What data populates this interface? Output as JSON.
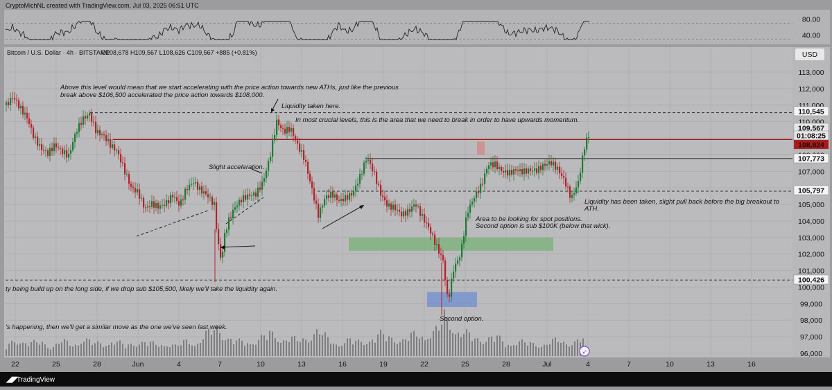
{
  "header": {
    "credit": "CryptoMichNL created with TradingView.com, Jul 03, 2025 06:51 UTC",
    "symbol": "Bitcoin / U.S. Dollar · 4h · BITSTAMP",
    "ohlc": "O108,678 H109,567 L108,626 C109,567 +885 (+0.81%)",
    "currency": "USD"
  },
  "footer": {
    "brand": "TradingView"
  },
  "chart_data": {
    "type": "candlestick",
    "title": "Bitcoin / U.S. Dollar · 4h · BITSTAMP",
    "ylim": [
      96000,
      114000
    ],
    "y_ticks": [
      "113,000",
      "112,000",
      "111,000",
      "110,000",
      "109,000",
      "108,000",
      "107,000",
      "106,000",
      "105,000",
      "104,000",
      "103,000",
      "102,000",
      "101,000",
      "100,000",
      "99,000",
      "98,000",
      "97,000",
      "96,000"
    ],
    "x_ticks": [
      "22",
      "25",
      "28",
      "Jun",
      "4",
      "7",
      "10",
      "13",
      "16",
      "19",
      "22",
      "25",
      "28",
      "Jul",
      "4",
      "7",
      "10",
      "13",
      "16"
    ],
    "rsi": {
      "ticks": [
        "80.00",
        "40.00"
      ],
      "ylim": [
        20,
        100
      ]
    },
    "price_labels": [
      {
        "value": "110,545",
        "style": "light"
      },
      {
        "value": "109,567",
        "style": "price"
      },
      {
        "value": "01:08:25",
        "style": "price-sub"
      },
      {
        "value": "108,924",
        "style": "red"
      },
      {
        "value": "107,773",
        "style": "light"
      },
      {
        "value": "105,797",
        "style": "light"
      },
      {
        "value": "100,426",
        "style": "light"
      }
    ],
    "levels": [
      {
        "price": 110545,
        "style": "dashed"
      },
      {
        "price": 108924,
        "style": "red"
      },
      {
        "price": 107773,
        "style": "solid"
      },
      {
        "price": 105797,
        "style": "dashed"
      },
      {
        "price": 100426,
        "style": "dashed"
      }
    ],
    "zones": [
      {
        "from": 102200,
        "to": 103000,
        "color": "#78b078"
      },
      {
        "from": 98800,
        "to": 99700,
        "color": "#6f8fd0"
      }
    ],
    "annotations": [
      "Above this level would mean that we start accelerating with the price action towards new ATHs, just like the previous break above $106,500 accelerated the price action towards $108,000.",
      "Liquidity taken here.",
      "In most crucial levels, this is the area that we need to break in order to have upwards momentum.",
      "Slight acceleration.",
      "Liquidity has been taken, slight pull back before the big breakout to ATH.",
      "Area to be looking for spot positions. Second option is sub $100K (below that wick).",
      "…ty being build up on the long side, if we drop sub $105,500, likely we'll take the liquidity again.",
      "Second option.",
      "…'s happening, then we'll get a similar move as the one we've seen last week."
    ],
    "close_path": [
      [
        0,
        111000
      ],
      [
        10,
        111500
      ],
      [
        20,
        110800
      ],
      [
        30,
        110200
      ],
      [
        40,
        109000
      ],
      [
        50,
        108300
      ],
      [
        60,
        108000
      ],
      [
        70,
        108500
      ],
      [
        80,
        108100
      ],
      [
        90,
        107800
      ],
      [
        100,
        109200
      ],
      [
        110,
        110000
      ],
      [
        120,
        110300
      ],
      [
        130,
        109200
      ],
      [
        140,
        109000
      ],
      [
        150,
        108400
      ],
      [
        160,
        108000
      ],
      [
        170,
        106900
      ],
      [
        180,
        105800
      ],
      [
        190,
        105500
      ],
      [
        200,
        104500
      ],
      [
        210,
        104800
      ],
      [
        220,
        104600
      ],
      [
        230,
        104800
      ],
      [
        240,
        105300
      ],
      [
        250,
        104700
      ],
      [
        260,
        105700
      ],
      [
        270,
        106100
      ],
      [
        280,
        105600
      ],
      [
        290,
        105300
      ],
      [
        300,
        104700
      ],
      [
        305,
        102500
      ],
      [
        310,
        101300
      ],
      [
        315,
        102900
      ],
      [
        320,
        103700
      ],
      [
        330,
        104600
      ],
      [
        340,
        105100
      ],
      [
        350,
        105300
      ],
      [
        360,
        105400
      ],
      [
        370,
        106100
      ],
      [
        380,
        107600
      ],
      [
        390,
        109800
      ],
      [
        400,
        109200
      ],
      [
        410,
        109400
      ],
      [
        420,
        108400
      ],
      [
        430,
        107600
      ],
      [
        440,
        105900
      ],
      [
        450,
        104200
      ],
      [
        460,
        105300
      ],
      [
        470,
        105500
      ],
      [
        480,
        105100
      ],
      [
        490,
        105300
      ],
      [
        500,
        105600
      ],
      [
        510,
        106600
      ],
      [
        520,
        107800
      ],
      [
        530,
        106900
      ],
      [
        540,
        105600
      ],
      [
        550,
        104900
      ],
      [
        560,
        104800
      ],
      [
        570,
        104400
      ],
      [
        580,
        104600
      ],
      [
        590,
        105100
      ],
      [
        600,
        104300
      ],
      [
        610,
        103600
      ],
      [
        620,
        102600
      ],
      [
        630,
        101700
      ],
      [
        637,
        99200
      ],
      [
        645,
        101200
      ],
      [
        655,
        102100
      ],
      [
        665,
        104700
      ],
      [
        675,
        105600
      ],
      [
        685,
        106300
      ],
      [
        695,
        107600
      ],
      [
        705,
        107600
      ],
      [
        715,
        107200
      ],
      [
        725,
        107100
      ],
      [
        735,
        107300
      ],
      [
        745,
        107200
      ],
      [
        755,
        107300
      ],
      [
        765,
        107300
      ],
      [
        775,
        107600
      ],
      [
        785,
        107800
      ],
      [
        795,
        107400
      ],
      [
        805,
        106700
      ],
      [
        815,
        105600
      ],
      [
        825,
        106600
      ],
      [
        835,
        109000
      ],
      [
        842,
        109567
      ]
    ],
    "volume": [
      [
        0,
        0.22
      ],
      [
        8,
        0.3
      ],
      [
        20,
        0.4
      ],
      [
        35,
        0.28
      ],
      [
        50,
        0.33
      ],
      [
        65,
        0.2
      ],
      [
        80,
        0.35
      ],
      [
        95,
        0.25
      ],
      [
        110,
        0.4
      ],
      [
        125,
        0.3
      ],
      [
        140,
        0.28
      ],
      [
        155,
        0.36
      ],
      [
        170,
        0.24
      ],
      [
        185,
        0.3
      ],
      [
        200,
        0.32
      ],
      [
        215,
        0.26
      ],
      [
        230,
        0.3
      ],
      [
        245,
        0.22
      ],
      [
        260,
        0.35
      ],
      [
        275,
        0.3
      ],
      [
        290,
        0.5
      ],
      [
        305,
        0.7
      ],
      [
        310,
        0.55
      ],
      [
        320,
        0.4
      ],
      [
        335,
        0.32
      ],
      [
        350,
        0.34
      ],
      [
        365,
        0.38
      ],
      [
        380,
        0.52
      ],
      [
        390,
        0.45
      ],
      [
        405,
        0.4
      ],
      [
        420,
        0.36
      ],
      [
        435,
        0.42
      ],
      [
        450,
        0.6
      ],
      [
        465,
        0.36
      ],
      [
        480,
        0.3
      ],
      [
        495,
        0.36
      ],
      [
        510,
        0.32
      ],
      [
        525,
        0.4
      ],
      [
        540,
        0.48
      ],
      [
        555,
        0.44
      ],
      [
        570,
        0.35
      ],
      [
        585,
        0.46
      ],
      [
        600,
        0.52
      ],
      [
        615,
        0.5
      ],
      [
        625,
        0.66
      ],
      [
        632,
        0.92
      ],
      [
        640,
        0.78
      ],
      [
        650,
        0.6
      ],
      [
        660,
        0.52
      ],
      [
        675,
        0.42
      ],
      [
        690,
        0.38
      ],
      [
        705,
        0.46
      ],
      [
        720,
        0.28
      ],
      [
        735,
        0.34
      ],
      [
        750,
        0.3
      ],
      [
        765,
        0.26
      ],
      [
        780,
        0.3
      ],
      [
        795,
        0.36
      ],
      [
        810,
        0.3
      ],
      [
        825,
        0.36
      ],
      [
        835,
        0.42
      ]
    ]
  }
}
